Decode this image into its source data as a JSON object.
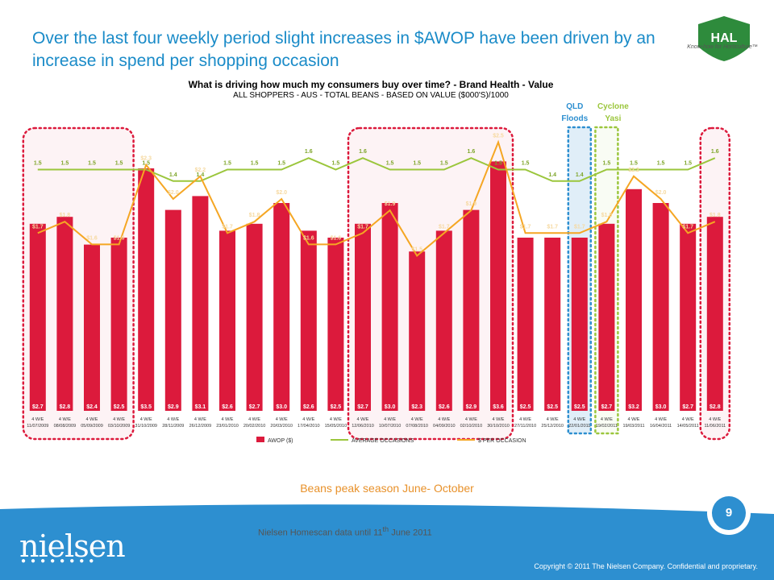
{
  "slide": {
    "headline": "Over the last four weekly period slight increases in $AWOP have been driven by an increase in spend per shopping occasion",
    "logo_text": "HAL",
    "logo_tagline": "Know-how for Horticulture™",
    "footer_note": "Beans peak season June- October",
    "source_prefix": "Nielsen Homescan data until 11",
    "source_sup": "th",
    "source_suffix": " June 2011",
    "brand": "nielsen",
    "copyright": "Copyright © 2011 The Nielsen Company. Confidential and proprietary.",
    "page_number": "9"
  },
  "colors": {
    "bar": "#dc1a3c",
    "occasions": "#9bc63c",
    "per_occasion": "#f5a623",
    "title_blue": "#1a8bc8",
    "band_blue": "#2d8fd0"
  },
  "chart_data": {
    "type": "bar",
    "title": "What is driving how much my consumers buy over time? - Brand Health - Value",
    "subtitle": "ALL SHOPPERS - AUS - TOTAL BEANS - BASED ON VALUE ($000'S)/1000",
    "categories": [
      "4 W/E 11/07/2009",
      "4 W/E 08/08/2009",
      "4 W/E 05/09/2009",
      "4 W/E 03/10/2009",
      "4 W/E 31/10/2009",
      "4 W/E 28/11/2009",
      "4 W/E 26/12/2009",
      "4 W/E 23/01/2010",
      "4 W/E 20/02/2010",
      "4 W/E 20/03/2010",
      "4 W/E 17/04/2010",
      "4 W/E 15/05/2010",
      "4 W/E 12/06/2010",
      "4 W/E 10/07/2010",
      "4 W/E 07/08/2010",
      "4 W/E 04/09/2010",
      "4 W/E 02/10/2010",
      "4 W/E 30/10/2010",
      "4 W/E 27/11/2010",
      "4 W/E 25/12/2010",
      "4 W/E 22/01/2011",
      "4 W/E 19/02/2011",
      "4 W/E 19/03/2011",
      "4 W/E 16/04/2011",
      "4 W/E 14/05/2011",
      "4 W/E 11/06/2011"
    ],
    "series": [
      {
        "name": "AWOP ($)",
        "type": "bar",
        "values": [
          2.7,
          2.8,
          2.4,
          2.5,
          3.5,
          2.9,
          3.1,
          2.6,
          2.7,
          3.0,
          2.6,
          2.5,
          2.7,
          3.0,
          2.3,
          2.6,
          2.9,
          3.6,
          2.5,
          2.5,
          2.5,
          2.7,
          3.2,
          3.0,
          2.7,
          2.8
        ]
      },
      {
        "name": "AVERAGE OCCASIONS",
        "type": "line",
        "values": [
          1.5,
          1.5,
          1.5,
          1.5,
          1.5,
          1.4,
          1.4,
          1.5,
          1.5,
          1.5,
          1.6,
          1.5,
          1.6,
          1.5,
          1.5,
          1.5,
          1.6,
          1.5,
          1.5,
          1.4,
          1.4,
          1.5,
          1.5,
          1.5,
          1.5,
          1.6
        ]
      },
      {
        "name": "$ PER OCCASION",
        "type": "line",
        "values": [
          1.7,
          1.8,
          1.6,
          1.6,
          2.3,
          2.0,
          2.2,
          1.7,
          1.8,
          2.0,
          1.6,
          1.6,
          1.7,
          1.9,
          1.5,
          1.7,
          1.9,
          2.5,
          1.7,
          1.7,
          1.7,
          1.8,
          2.2,
          2.0,
          1.7,
          1.8
        ]
      }
    ],
    "bar_labels": [
      "$2.7",
      "$2.8",
      "$2.4",
      "$2.5",
      "$3.5",
      "$2.9",
      "$3.1",
      "$2.6",
      "$2.7",
      "$3.0",
      "$2.6",
      "$2.5",
      "$2.7",
      "$3.0",
      "$2.3",
      "$2.6",
      "$2.9",
      "$3.6",
      "$2.5",
      "$2.5",
      "$2.5",
      "$2.7",
      "$3.2",
      "$3.0",
      "$2.7",
      "$2.8"
    ],
    "occasion_labels": [
      "1.5",
      "1.5",
      "1.5",
      "1.5",
      "1.5",
      "1.4",
      "1.4",
      "1.5",
      "1.5",
      "1.5",
      "1.6",
      "1.5",
      "1.6",
      "1.5",
      "1.5",
      "1.5",
      "1.6",
      "1.5",
      "1.5",
      "1.4",
      "1.4",
      "1.5",
      "1.5",
      "1.5",
      "1.5",
      "1.6"
    ],
    "per_occasion_labels": [
      "$1.7",
      "$1.8",
      "$1.6",
      "$1.6",
      "$2.3",
      "$2.0",
      "$2.2",
      "$1.7",
      "$1.8",
      "$2.0",
      "$1.6",
      "$1.6",
      "$1.7",
      "$1.9",
      "$1.5",
      "$1.7",
      "$1.9",
      "$2.5",
      "$1.7",
      "$1.7",
      "$1.7",
      "$1.8",
      "$2.2",
      "$2.0",
      "$1.7",
      "$1.8"
    ],
    "annotations": [
      {
        "text": "QLD Floods",
        "line1": "QLD",
        "line2": "Floods",
        "category_index": 20,
        "color": "#2d8fd0"
      },
      {
        "text": "Cyclone Yasi",
        "line1": "Cyclone",
        "line2": "Yasi",
        "category_index": 21,
        "color": "#9bc63c"
      }
    ],
    "highlights": [
      {
        "from_index": 0,
        "to_index": 3,
        "color": "#dc1a3c"
      },
      {
        "from_index": 12,
        "to_index": 17,
        "color": "#dc1a3c"
      },
      {
        "from_index": 25,
        "to_index": 25,
        "color": "#dc1a3c"
      }
    ],
    "legend": [
      "AWOP ($)",
      "AVERAGE OCCASIONS",
      "$ PER OCCASION"
    ],
    "legend_position": "bottom"
  }
}
